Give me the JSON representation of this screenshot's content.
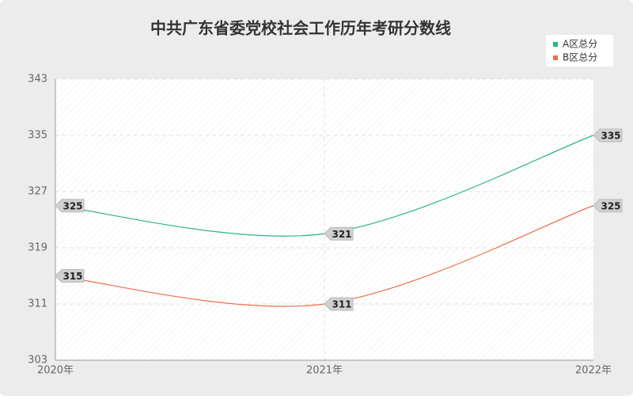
{
  "chart_data": {
    "type": "line",
    "title": "中共广东省委党校社会工作历年考研分数线",
    "categories": [
      "2020年",
      "2021年",
      "2022年"
    ],
    "series": [
      {
        "name": "A区总分",
        "color": "#2db38a",
        "values": [
          325,
          321,
          335
        ]
      },
      {
        "name": "B区总分",
        "color": "#e8714a",
        "values": [
          315,
          311,
          325
        ]
      }
    ],
    "ylim": [
      303,
      343
    ],
    "yticks": [
      303,
      311,
      319,
      327,
      335,
      343
    ],
    "grid": true,
    "legend": "top-right"
  }
}
